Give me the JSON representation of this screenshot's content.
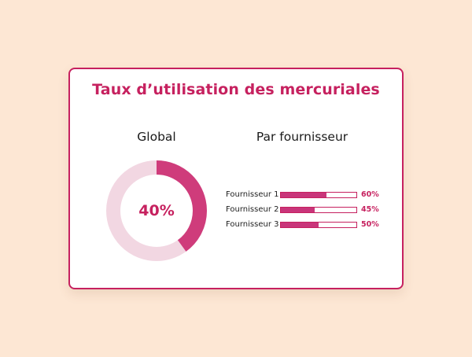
{
  "title": "Taux d’utilisation des mercuriales",
  "global": {
    "heading": "Global",
    "value": 0.4,
    "label": "40%"
  },
  "suppliers": {
    "heading": "Par fournisseur",
    "items": [
      {
        "name": "Fournisseur 1",
        "value": 0.6,
        "label": "60%"
      },
      {
        "name": "Fournisseur 2",
        "value": 0.45,
        "label": "45%"
      },
      {
        "name": "Fournisseur 3",
        "value": 0.5,
        "label": "50%"
      }
    ]
  },
  "colors": {
    "background": "#fde7d4",
    "accent": "#c6215f",
    "fill": "#c9357a",
    "donut_track": "#f2d7e2",
    "donut_fill": "#cf3c7b"
  }
}
